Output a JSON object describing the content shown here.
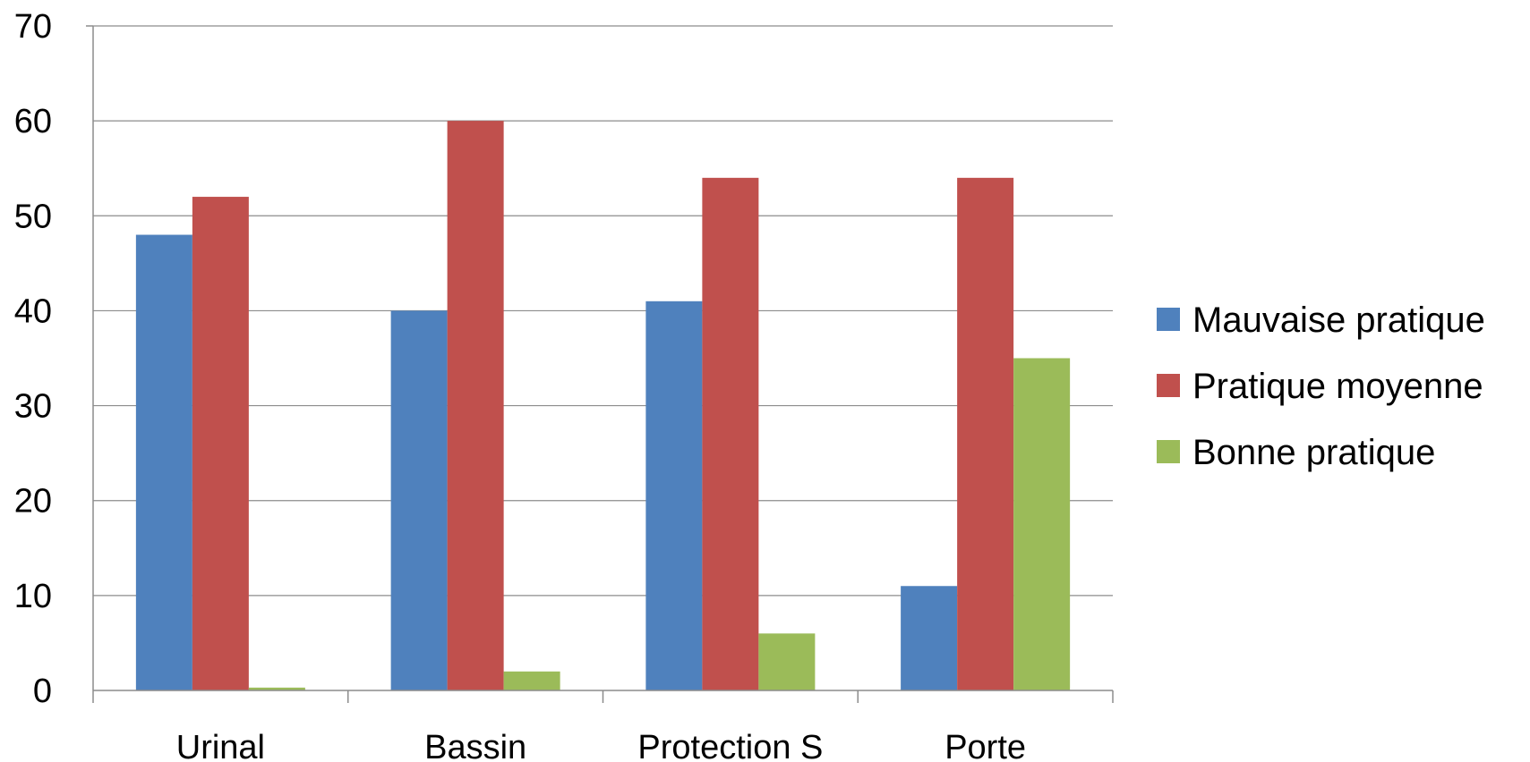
{
  "chart_data": {
    "type": "bar",
    "title": "",
    "xlabel": "",
    "ylabel": "",
    "categories": [
      "Urinal",
      "Bassin",
      "Protection S",
      "Porte"
    ],
    "series": [
      {
        "name": "Mauvaise pratique",
        "color": "#4F81BD",
        "values": [
          48,
          40,
          41,
          11
        ]
      },
      {
        "name": "Pratique moyenne",
        "color": "#C0504D",
        "values": [
          52,
          60,
          54,
          54
        ]
      },
      {
        "name": "Bonne pratique",
        "color": "#9BBB59",
        "values": [
          0.3,
          2,
          6,
          35
        ]
      }
    ],
    "ylim": [
      0,
      70
    ],
    "yticks": [
      0,
      10,
      20,
      30,
      40,
      50,
      60,
      70
    ],
    "grid": true,
    "legend_position": "right"
  }
}
